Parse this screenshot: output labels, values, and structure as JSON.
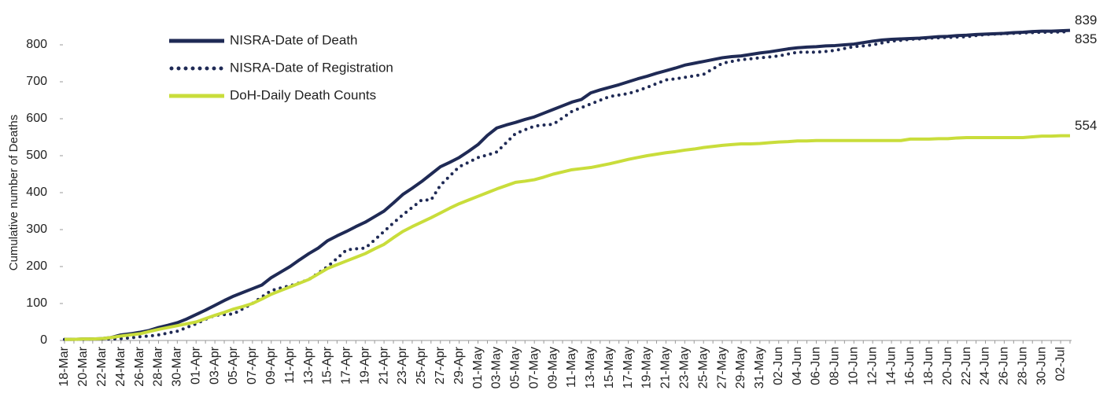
{
  "chart_data": {
    "type": "line",
    "ylabel": "Cumulative number of Deaths",
    "categories": [
      "18-Mar",
      null,
      "20-Mar",
      null,
      "22-Mar",
      null,
      "24-Mar",
      null,
      "26-Mar",
      null,
      "28-Mar",
      null,
      "30-Mar",
      null,
      "01-Apr",
      null,
      "03-Apr",
      null,
      "05-Apr",
      null,
      "07-Apr",
      null,
      "09-Apr",
      null,
      "11-Apr",
      null,
      "13-Apr",
      null,
      "15-Apr",
      null,
      "17-Apr",
      null,
      "19-Apr",
      null,
      "21-Apr",
      null,
      "23-Apr",
      null,
      "25-Apr",
      null,
      "27-Apr",
      null,
      "29-Apr",
      null,
      "01-May",
      null,
      "03-May",
      null,
      "05-May",
      null,
      "07-May",
      null,
      "09-May",
      null,
      "11-May",
      null,
      "13-May",
      null,
      "15-May",
      null,
      "17-May",
      null,
      "19-May",
      null,
      "21-May",
      null,
      "23-May",
      null,
      "25-May",
      null,
      "27-May",
      null,
      "29-May",
      null,
      "31-May",
      null,
      "02-Jun",
      null,
      "04-Jun",
      null,
      "06-Jun",
      null,
      "08-Jun",
      null,
      "10-Jun",
      null,
      "12-Jun",
      null,
      "14-Jun",
      null,
      "16-Jun",
      null,
      "18-Jun",
      null,
      "20-Jun",
      null,
      "22-Jun",
      null,
      "24-Jun",
      null,
      "26-Jun",
      null,
      "28-Jun",
      null,
      "30-Jun",
      null,
      "02-Jul",
      null
    ],
    "series": [
      {
        "name": "NISRA-Date of Death",
        "color": "#1f2a55",
        "style": "solid",
        "values": [
          3,
          3,
          4,
          4,
          5,
          8,
          15,
          18,
          22,
          27,
          35,
          41,
          48,
          58,
          70,
          82,
          95,
          108,
          120,
          130,
          140,
          150,
          170,
          185,
          200,
          218,
          235,
          250,
          270,
          283,
          295,
          308,
          320,
          335,
          350,
          372,
          395,
          412,
          430,
          450,
          470,
          482,
          495,
          512,
          530,
          555,
          575,
          583,
          590,
          598,
          605,
          615,
          625,
          635,
          645,
          652,
          670,
          678,
          685,
          692,
          700,
          708,
          715,
          723,
          730,
          737,
          745,
          750,
          755,
          760,
          765,
          768,
          770,
          774,
          778,
          781,
          785,
          789,
          792,
          794,
          795,
          797,
          798,
          800,
          802,
          806,
          810,
          813,
          815,
          816,
          817,
          818,
          820,
          822,
          823,
          825,
          826,
          828,
          829,
          830,
          831,
          833,
          834,
          836,
          837,
          837,
          838,
          839
        ]
      },
      {
        "name": "NISRA-Date of Registration",
        "color": "#1f2a55",
        "style": "dotted",
        "values": [
          3,
          3,
          3,
          4,
          4,
          4,
          5,
          7,
          10,
          12,
          15,
          20,
          25,
          35,
          45,
          57,
          68,
          70,
          72,
          86,
          100,
          118,
          135,
          142,
          148,
          156,
          165,
          182,
          200,
          222,
          245,
          248,
          250,
          272,
          295,
          318,
          340,
          360,
          380,
          380,
          420,
          445,
          470,
          482,
          495,
          502,
          510,
          535,
          560,
          570,
          580,
          583,
          585,
          602,
          620,
          630,
          640,
          650,
          660,
          664,
          668,
          676,
          685,
          695,
          705,
          708,
          712,
          716,
          720,
          735,
          750,
          755,
          760,
          762,
          765,
          767,
          770,
          775,
          780,
          780,
          780,
          782,
          785,
          790,
          795,
          797,
          800,
          805,
          810,
          812,
          815,
          816,
          818,
          819,
          820,
          821,
          822,
          825,
          828,
          829,
          830,
          831,
          832,
          833,
          834,
          834,
          835,
          835
        ]
      },
      {
        "name": "DoH-Daily Death Counts",
        "color": "#c9dd3b",
        "style": "solid",
        "values": [
          3,
          3,
          4,
          4,
          5,
          8,
          12,
          15,
          18,
          24,
          30,
          35,
          40,
          45,
          50,
          59,
          68,
          76,
          85,
          92,
          100,
          112,
          125,
          135,
          145,
          155,
          165,
          180,
          195,
          205,
          215,
          225,
          235,
          248,
          260,
          278,
          295,
          308,
          320,
          332,
          345,
          358,
          370,
          380,
          390,
          400,
          410,
          419,
          428,
          431,
          435,
          442,
          450,
          456,
          462,
          465,
          468,
          473,
          478,
          484,
          490,
          495,
          500,
          504,
          508,
          511,
          515,
          518,
          522,
          525,
          528,
          530,
          532,
          532,
          533,
          535,
          537,
          538,
          540,
          540,
          541,
          541,
          541,
          541,
          541,
          541,
          541,
          541,
          541,
          541,
          545,
          545,
          545,
          546,
          546,
          548,
          549,
          549,
          549,
          549,
          549,
          549,
          549,
          551,
          553,
          553,
          554,
          554
        ]
      }
    ],
    "ylim": [
      0,
      850
    ],
    "yticks": [
      0,
      100,
      200,
      300,
      400,
      500,
      600,
      700,
      800
    ],
    "grid": false,
    "legend": "upper left"
  }
}
